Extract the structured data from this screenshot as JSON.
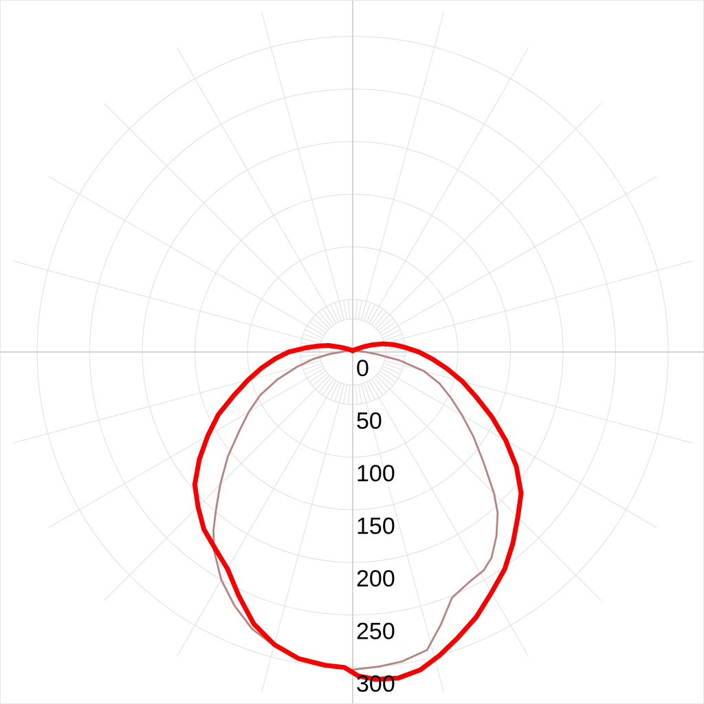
{
  "chart_data": {
    "type": "line",
    "polar": true,
    "title": "",
    "description": "Photometric polar diagram (luminous intensity distribution). Angle 0 deg points straight down (nadir); negative angles = left half, positive = right half. Values in candela-like units read from the radial scale.",
    "radial_axis": {
      "min": 0,
      "max": 300,
      "tick_step": 50,
      "tick_labels": [
        "0",
        "50",
        "100",
        "150",
        "200",
        "250",
        "300"
      ],
      "label_side": "down"
    },
    "angular_axis": {
      "zero_direction": "down",
      "spoke_step_deg": 15,
      "fine_tick_step_deg": 5
    },
    "grid": {
      "show": true,
      "ring_count": 6,
      "grid_color": "#dedede",
      "axis_color": "#c9c9c9",
      "label_color": "#000000"
    },
    "series": [
      {
        "name": "intensity-curve-secondary",
        "color": "#b58381",
        "stroke_width": 2.8,
        "points": [
          [
            -179.5,
            2
          ],
          [
            -160,
            2.2
          ],
          [
            -140,
            2.6
          ],
          [
            -125,
            3
          ],
          [
            -115,
            3.6
          ],
          [
            -105,
            5
          ],
          [
            -100,
            6.5
          ],
          [
            -95,
            8
          ],
          [
            -90,
            11
          ],
          [
            -85,
            22
          ],
          [
            -80,
            38
          ],
          [
            -75,
            55
          ],
          [
            -70,
            76
          ],
          [
            -65,
            97
          ],
          [
            -60,
            114
          ],
          [
            -55,
            132
          ],
          [
            -50,
            155
          ],
          [
            -45,
            178
          ],
          [
            -41,
            198
          ],
          [
            -38,
            215
          ],
          [
            -35,
            230
          ],
          [
            -30,
            250
          ],
          [
            -25,
            266
          ],
          [
            -20,
            280
          ],
          [
            -15,
            289
          ],
          [
            -10,
            296
          ],
          [
            -5,
            300
          ],
          [
            0,
            302
          ],
          [
            5,
            300
          ],
          [
            9,
            298
          ],
          [
            14,
            292
          ],
          [
            18,
            272
          ],
          [
            22,
            252
          ],
          [
            27,
            245
          ],
          [
            31,
            242
          ],
          [
            34,
            236
          ],
          [
            38,
            222
          ],
          [
            42,
            206
          ],
          [
            45,
            190
          ],
          [
            50,
            162
          ],
          [
            55,
            140
          ],
          [
            60,
            120
          ],
          [
            65,
            103
          ],
          [
            70,
            88
          ],
          [
            75,
            70
          ],
          [
            80,
            45
          ],
          [
            85,
            22
          ],
          [
            90,
            12
          ],
          [
            95,
            7
          ],
          [
            100,
            5
          ],
          [
            105,
            4.2
          ],
          [
            115,
            3.4
          ],
          [
            125,
            3
          ],
          [
            140,
            2.6
          ],
          [
            160,
            2.2
          ],
          [
            179.5,
            2
          ]
        ]
      },
      {
        "name": "intensity-curve-primary",
        "color": "#f40000",
        "stroke_width": 7,
        "points": [
          [
            -179.5,
            1
          ],
          [
            -170,
            1.2
          ],
          [
            -160,
            1.5
          ],
          [
            -150,
            2
          ],
          [
            -140,
            2.5
          ],
          [
            -130,
            3.5
          ],
          [
            -125,
            4.5
          ],
          [
            -120,
            6
          ],
          [
            -115,
            9
          ],
          [
            -110,
            14
          ],
          [
            -105,
            24
          ],
          [
            -100,
            33
          ],
          [
            -95,
            45
          ],
          [
            -90,
            61
          ],
          [
            -85,
            74
          ],
          [
            -80,
            88
          ],
          [
            -75,
            103
          ],
          [
            -70,
            120
          ],
          [
            -65,
            141
          ],
          [
            -60,
            159
          ],
          [
            -55,
            178
          ],
          [
            -50,
            196
          ],
          [
            -45,
            208
          ],
          [
            -40,
            220
          ],
          [
            -35,
            228
          ],
          [
            -30,
            238
          ],
          [
            -25,
            256
          ],
          [
            -20,
            275
          ],
          [
            -15,
            288
          ],
          [
            -10,
            296
          ],
          [
            -5,
            299
          ],
          [
            -1.5,
            300
          ],
          [
            1,
            308
          ],
          [
            4,
            312
          ],
          [
            8,
            313
          ],
          [
            12,
            309
          ],
          [
            16,
            300
          ],
          [
            20,
            290
          ],
          [
            25,
            278
          ],
          [
            30,
            264
          ],
          [
            35,
            252
          ],
          [
            40,
            237
          ],
          [
            45,
            222
          ],
          [
            50,
            209
          ],
          [
            55,
            190
          ],
          [
            60,
            168
          ],
          [
            65,
            146
          ],
          [
            70,
            125
          ],
          [
            75,
            108
          ],
          [
            80,
            91
          ],
          [
            85,
            76
          ],
          [
            90,
            63
          ],
          [
            95,
            50
          ],
          [
            100,
            40
          ],
          [
            105,
            30
          ],
          [
            110,
            20
          ],
          [
            115,
            12
          ],
          [
            120,
            7
          ],
          [
            125,
            5
          ],
          [
            130,
            4
          ],
          [
            140,
            2.8
          ],
          [
            150,
            2
          ],
          [
            160,
            1.5
          ],
          [
            170,
            1.2
          ],
          [
            179.5,
            1
          ]
        ]
      }
    ],
    "layout_hints": {
      "legend": "none",
      "background": "#ffffff"
    }
  }
}
